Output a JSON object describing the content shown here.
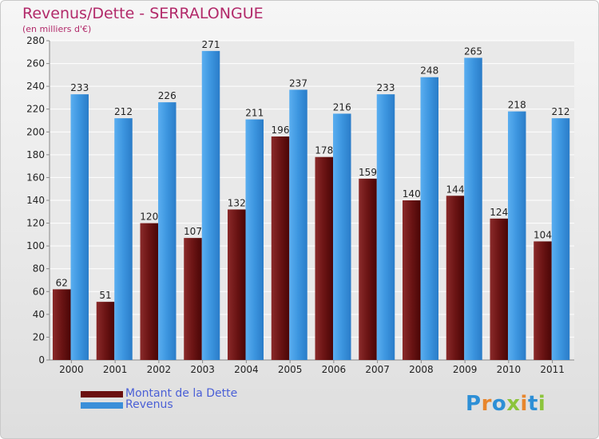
{
  "chart_data": {
    "type": "bar",
    "title": "Revenus/Dette - SERRALONGUE",
    "subtitle": "(en milliers d'€)",
    "categories": [
      "2000",
      "2001",
      "2002",
      "2003",
      "2004",
      "2005",
      "2006",
      "2007",
      "2008",
      "2009",
      "2010",
      "2011"
    ],
    "series": [
      {
        "name": "Montant de la Dette",
        "color": "#6b0f0f",
        "values": [
          62,
          51,
          120,
          107,
          132,
          196,
          178,
          159,
          140,
          144,
          124,
          104
        ]
      },
      {
        "name": "Revenus",
        "color": "#3b8fd9",
        "values": [
          233,
          212,
          226,
          271,
          211,
          237,
          216,
          233,
          248,
          265,
          218,
          212
        ]
      }
    ],
    "ylim": [
      0,
      280
    ],
    "yticks": [
      0,
      20,
      40,
      60,
      80,
      100,
      120,
      140,
      160,
      180,
      200,
      220,
      240,
      260,
      280
    ],
    "grid": true,
    "legend_position": "bottom-left"
  },
  "logo": {
    "letters": [
      {
        "ch": "P",
        "color": "#2d8fd6"
      },
      {
        "ch": "r",
        "color": "#e8862c"
      },
      {
        "ch": "o",
        "color": "#2d8fd6"
      },
      {
        "ch": "x",
        "color": "#8cc43c"
      },
      {
        "ch": "i",
        "color": "#e8862c"
      },
      {
        "ch": "t",
        "color": "#2d8fd6"
      },
      {
        "ch": "i",
        "color": "#8cc43c"
      }
    ]
  }
}
